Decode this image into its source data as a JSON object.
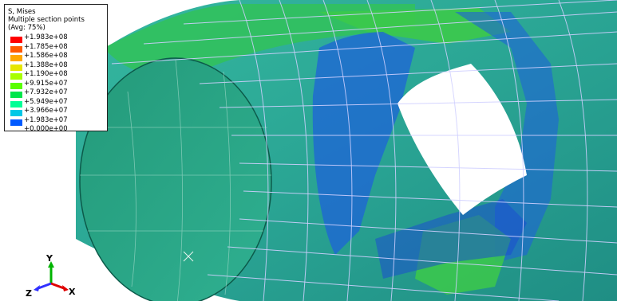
{
  "legend": {
    "title_line1": "S, Mises",
    "title_line2": "Multiple section points",
    "title_line3": "(Avg: 75%)",
    "entries": [
      {
        "value": "+1.983e+08",
        "color": "#ff0000"
      },
      {
        "value": "+1.785e+08",
        "color": "#ff5a00"
      },
      {
        "value": "+1.586e+08",
        "color": "#ffa800"
      },
      {
        "value": "+1.388e+08",
        "color": "#e6e600"
      },
      {
        "value": "+1.190e+08",
        "color": "#a8ff00"
      },
      {
        "value": "+9.915e+07",
        "color": "#5aff00"
      },
      {
        "value": "+7.932e+07",
        "color": "#00e64b"
      },
      {
        "value": "+5.949e+07",
        "color": "#00ff96"
      },
      {
        "value": "+3.966e+07",
        "color": "#00c8e6"
      },
      {
        "value": "+1.983e+07",
        "color": "#005aff"
      },
      {
        "value": "+0.000e+00",
        "color": "#0000c8"
      }
    ]
  },
  "triad": {
    "y_label": "Y",
    "z_label": "Z",
    "x_label": "X",
    "y_color": "#00b400",
    "z_color": "#3030ff",
    "x_color": "#e00000"
  },
  "model": {
    "shell_main_color": "#2fb09a",
    "inner_color": "#2a9a7a",
    "high_stress_color": "#3dbe3d",
    "low_stress_color": "#1a55d8",
    "mesh_color": "#c8c8ff"
  }
}
